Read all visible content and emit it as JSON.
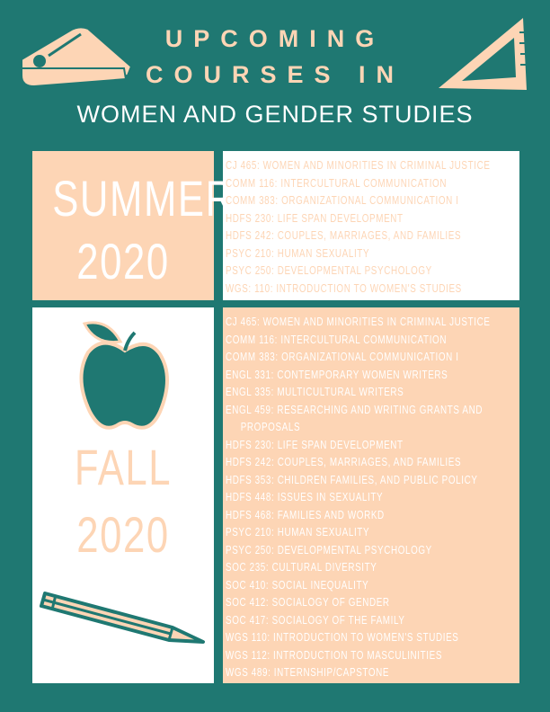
{
  "header": {
    "line1": "UPCOMING",
    "line2": "COURSES IN",
    "line3": "WOMEN AND GENDER STUDIES"
  },
  "colors": {
    "teal": "#1f7872",
    "peach": "#fdd5b5",
    "white": "#ffffff"
  },
  "icons": [
    "stapler-icon",
    "set-square-icon",
    "apple-icon",
    "pencil-icon"
  ],
  "summer": {
    "title": "SUMMER",
    "year": "2020",
    "courses": [
      "CJ 465: WOMEN AND MINORITIES IN CRIMINAL JUSTICE",
      "COMM 116: INTERCULTURAL COMMUNICATION",
      "COMM 383: ORGANIZATIONAL COMMUNICATION I",
      "HDFS 230: LIFE SPAN DEVELOPMENT",
      "HDFS 242: COUPLES, MARRIAGES, AND FAMILIES",
      "PSYC 210: HUMAN SEXUALITY",
      "PSYC 250: DEVELOPMENTAL PSYCHOLOGY",
      "WGS: 110: INTRODUCTION TO WOMEN'S STUDIES"
    ]
  },
  "fall": {
    "title": "FALL",
    "year": "2020",
    "courses": [
      "CJ 465: WOMEN AND MINORITIES IN CRIMINAL JUSTICE",
      "COMM 116: INTERCULTURAL COMMUNICATION",
      "COMM 383: ORGANIZATIONAL COMMUNICATION I",
      "ENGL 331: CONTEMPORARY WOMEN WRITERS",
      "ENGL 335: MULTICULTURAL WRITERS",
      "ENGL 459: RESEARCHING AND WRITING GRANTS AND PROPOSALS",
      "HDFS 230: LIFE SPAN DEVELOPMENT",
      "HDFS 242: COUPLES, MARRIAGES, AND FAMILIES",
      "HDFS 353: CHILDREN FAMILIES, AND PUBLIC POLICY",
      "HDFS 448: ISSUES IN SEXUALITY",
      "HDFS 468: FAMILIES AND WORKD",
      "PSYC 210: HUMAN SEXUALITY",
      "PSYC 250: DEVELOPMENTAL PSYCHOLOGY",
      "SOC 235: CULTURAL DIVERSITY",
      "SOC 410: SOCIAL INEQUALITY",
      "SOC 412: SOCIALOGY OF GENDER",
      "SOC 417: SOCIALOGY OF THE FAMILY",
      "WGS 110: INTRODUCTION TO WOMEN'S STUDIES",
      "WGS 112: INTRODUCTION TO MASCULINITIES",
      "WGS 489: INTERNSHIP/CAPSTONE"
    ]
  }
}
